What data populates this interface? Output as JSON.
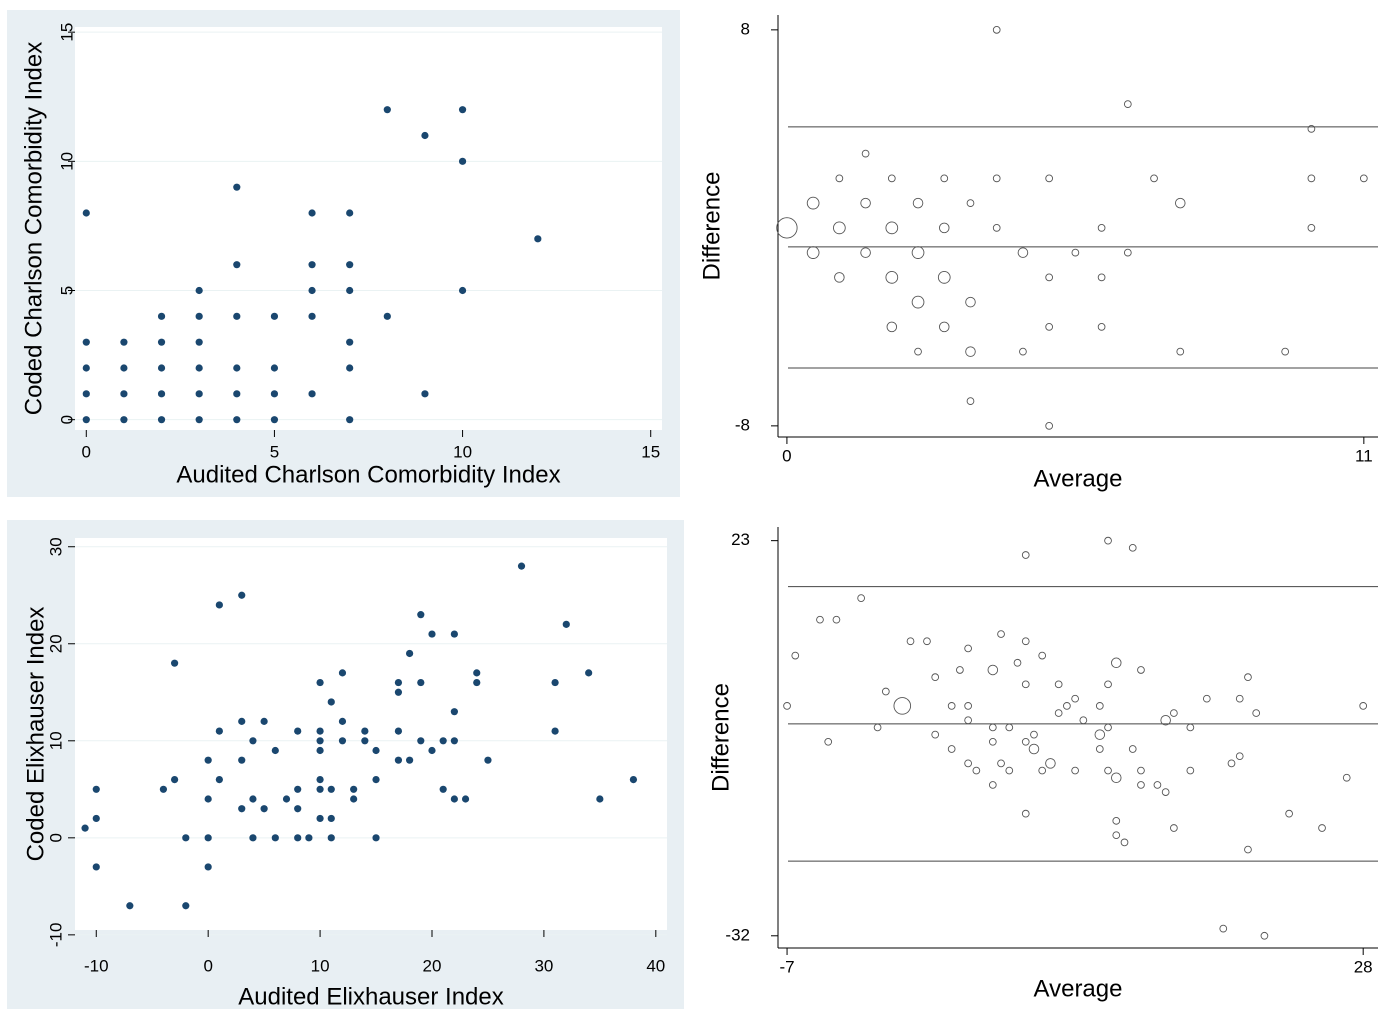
{
  "chart_data": [
    {
      "type": "scatter",
      "x_label": "Audited Charlson Comorbidity Index",
      "y_label": "Coded Charlson Comorbidity Index",
      "marker": "filled",
      "color": "#1a476f",
      "grid": true,
      "background": "#e8eff3",
      "xlim": [
        -0.3,
        15.3
      ],
      "ylim": [
        -0.4,
        15.2
      ],
      "xticks": [
        0,
        5,
        10,
        15
      ],
      "yticks": [
        0,
        5,
        10,
        15
      ],
      "x": [
        0,
        0,
        0,
        0,
        0,
        1,
        1,
        1,
        1,
        2,
        2,
        2,
        2,
        2,
        3,
        3,
        3,
        3,
        3,
        3,
        4,
        4,
        4,
        4,
        4,
        4,
        5,
        5,
        5,
        5,
        6,
        6,
        6,
        6,
        6,
        7,
        7,
        7,
        7,
        7,
        7,
        8,
        8,
        9,
        9,
        10,
        10,
        10,
        12
      ],
      "y": [
        8,
        3,
        2,
        1,
        0,
        3,
        2,
        1,
        0,
        4,
        3,
        2,
        1,
        0,
        5,
        4,
        3,
        2,
        1,
        0,
        9,
        6,
        4,
        2,
        1,
        0,
        4,
        2,
        1,
        0,
        8,
        6,
        5,
        4,
        1,
        8,
        6,
        5,
        3,
        2,
        0,
        12,
        4,
        11,
        1,
        12,
        10,
        5,
        7
      ]
    },
    {
      "type": "scatter",
      "x_label": "Average",
      "y_label": "Difference",
      "marker": "hollow",
      "color": "#555555",
      "grid": false,
      "xlim": [
        -0.17,
        11.27
      ],
      "ylim": [
        -8.45,
        8.6
      ],
      "xticks": [
        0,
        11
      ],
      "yticks": [
        -8,
        8
      ],
      "reference_lines": [
        4.08,
        -0.77,
        -5.66
      ],
      "x": [
        0,
        0.5,
        0.5,
        1,
        1,
        1,
        1.5,
        1.5,
        1.5,
        2,
        2,
        2,
        2,
        2.5,
        2.5,
        2.5,
        2.5,
        3,
        3,
        3,
        3,
        3.5,
        3.5,
        3.5,
        3.5,
        4,
        4,
        4,
        4.5,
        4.5,
        5,
        5,
        5,
        5,
        5.5,
        6,
        6,
        6,
        6.5,
        6.5,
        7,
        7.5,
        7.5,
        9.5,
        10,
        10,
        10,
        11
      ],
      "y": [
        0,
        1,
        -1,
        2,
        0,
        -2,
        3,
        1,
        -1,
        2,
        0,
        -2,
        -4,
        1,
        -1,
        -3,
        -5,
        2,
        0,
        -2,
        -4,
        1,
        -3,
        -5,
        -7,
        8,
        2,
        0,
        -1,
        -5,
        2,
        -2,
        -4,
        -8,
        -1,
        0,
        -2,
        -4,
        5,
        -1,
        2,
        1,
        -5,
        -5,
        4,
        2,
        0,
        2
      ],
      "sizes": [
        9,
        3,
        3,
        1,
        3,
        2,
        1,
        2,
        2,
        1,
        3,
        3,
        2,
        2,
        3,
        3,
        1,
        1,
        2,
        3,
        2,
        1,
        2,
        2,
        1,
        1,
        1,
        1,
        2,
        1,
        1,
        1,
        1,
        1,
        1,
        1,
        1,
        1,
        1,
        1,
        1,
        2,
        1,
        1,
        1,
        1,
        1,
        1
      ]
    },
    {
      "type": "scatter",
      "x_label": "Audited Elixhauser Index",
      "y_label": "Coded Elixhauser Index",
      "marker": "filled",
      "color": "#1a476f",
      "grid": true,
      "background": "#e8eff3",
      "xlim": [
        -11.9,
        41
      ],
      "ylim": [
        -9.5,
        30.9
      ],
      "xticks": [
        -10,
        0,
        10,
        20,
        30,
        40
      ],
      "yticks": [
        -10,
        0,
        10,
        20,
        30
      ],
      "x": [
        -11,
        -10,
        -10,
        -10,
        -7,
        -4,
        -3,
        -3,
        -2,
        -2,
        0,
        0,
        0,
        0,
        1,
        1,
        1,
        3,
        3,
        3,
        3,
        4,
        4,
        4,
        5,
        5,
        6,
        6,
        7,
        8,
        8,
        8,
        8,
        9,
        10,
        10,
        10,
        10,
        10,
        10,
        10,
        11,
        11,
        11,
        11,
        12,
        12,
        12,
        13,
        13,
        14,
        14,
        15,
        15,
        15,
        17,
        17,
        17,
        17,
        18,
        18,
        19,
        19,
        19,
        20,
        20,
        21,
        21,
        22,
        22,
        22,
        22,
        23,
        24,
        24,
        25,
        28,
        31,
        31,
        32,
        34,
        35,
        38
      ],
      "y": [
        1,
        5,
        2,
        -3,
        -7,
        5,
        18,
        6,
        0,
        -7,
        8,
        4,
        0,
        -3,
        24,
        11,
        6,
        25,
        12,
        8,
        3,
        10,
        4,
        0,
        12,
        3,
        9,
        0,
        4,
        11,
        5,
        3,
        0,
        0,
        16,
        11,
        10,
        9,
        6,
        5,
        2,
        14,
        5,
        2,
        0,
        17,
        12,
        10,
        5,
        4,
        11,
        10,
        9,
        6,
        0,
        16,
        15,
        11,
        8,
        19,
        8,
        23,
        16,
        10,
        21,
        9,
        10,
        5,
        21,
        13,
        10,
        4,
        4,
        17,
        16,
        8,
        28,
        16,
        11,
        22,
        17,
        4,
        6
      ]
    },
    {
      "type": "scatter",
      "x_label": "Average",
      "y_label": "Difference",
      "marker": "hollow",
      "color": "#555555",
      "grid": false,
      "xlim": [
        -7.55,
        28.9
      ],
      "ylim": [
        -33.7,
        24.9
      ],
      "xticks": [
        -7,
        28
      ],
      "yticks": [
        -32,
        23
      ],
      "reference_lines": [
        16.6,
        -2.5,
        -21.6
      ],
      "x": [
        -7,
        -6.5,
        -5,
        -4,
        -4.5,
        -2.5,
        -1.5,
        -1,
        0,
        0.5,
        1.5,
        2,
        2,
        3,
        3,
        3.5,
        4,
        4,
        4,
        4,
        4.5,
        5.5,
        5.5,
        5.5,
        5.5,
        6,
        6,
        6.5,
        6.5,
        7,
        7.5,
        7.5,
        7.5,
        7.5,
        7.5,
        8,
        8,
        8.5,
        8.5,
        9,
        9.5,
        9.5,
        10,
        10.5,
        10.5,
        11,
        12,
        12,
        12,
        12.5,
        12.5,
        12.5,
        12.5,
        13,
        13,
        13,
        13,
        13.5,
        14,
        14,
        14.5,
        14.5,
        14.5,
        15.5,
        16,
        16,
        16.5,
        16.5,
        17.5,
        17.5,
        18.5,
        19.5,
        20,
        20.5,
        20.5,
        21,
        21,
        21.5,
        22,
        23.5,
        25.5,
        27,
        28
      ],
      "y": [
        0,
        7,
        12,
        12,
        -5,
        15,
        -3,
        2,
        0,
        9,
        9,
        4,
        -4,
        0,
        -6,
        5,
        8,
        0,
        -2,
        -8,
        -9,
        5,
        -3,
        -5,
        -11,
        10,
        -8,
        -3,
        -9,
        6,
        21,
        9,
        3,
        -5,
        -15,
        -4,
        -6,
        7,
        -9,
        -8,
        3,
        -1,
        0,
        1,
        -9,
        -2,
        0,
        -4,
        -6,
        23,
        3,
        -3,
        -9,
        6,
        -10,
        -16,
        -18,
        -19,
        22,
        -6,
        5,
        -9,
        -11,
        -11,
        -2,
        -12,
        -1,
        -17,
        -3,
        -9,
        1,
        -31,
        -8,
        1,
        -7,
        4,
        -20,
        -1,
        -32,
        -15,
        -17,
        -10,
        0
      ],
      "sizes": [
        1,
        1,
        1,
        1,
        1,
        1,
        1,
        1,
        6,
        1,
        1,
        1,
        1,
        1,
        1,
        1,
        1,
        1,
        1,
        1,
        1,
        2,
        1,
        1,
        1,
        1,
        1,
        1,
        1,
        1,
        1,
        1,
        1,
        1,
        1,
        1,
        2,
        1,
        1,
        2,
        1,
        1,
        1,
        1,
        1,
        1,
        1,
        2,
        1,
        1,
        1,
        1,
        1,
        2,
        2,
        1,
        1,
        1,
        1,
        1,
        1,
        1,
        1,
        1,
        2,
        1,
        1,
        1,
        1,
        1,
        1,
        1,
        1,
        1,
        1,
        1,
        1,
        1,
        1,
        1,
        1,
        1,
        1
      ]
    }
  ]
}
